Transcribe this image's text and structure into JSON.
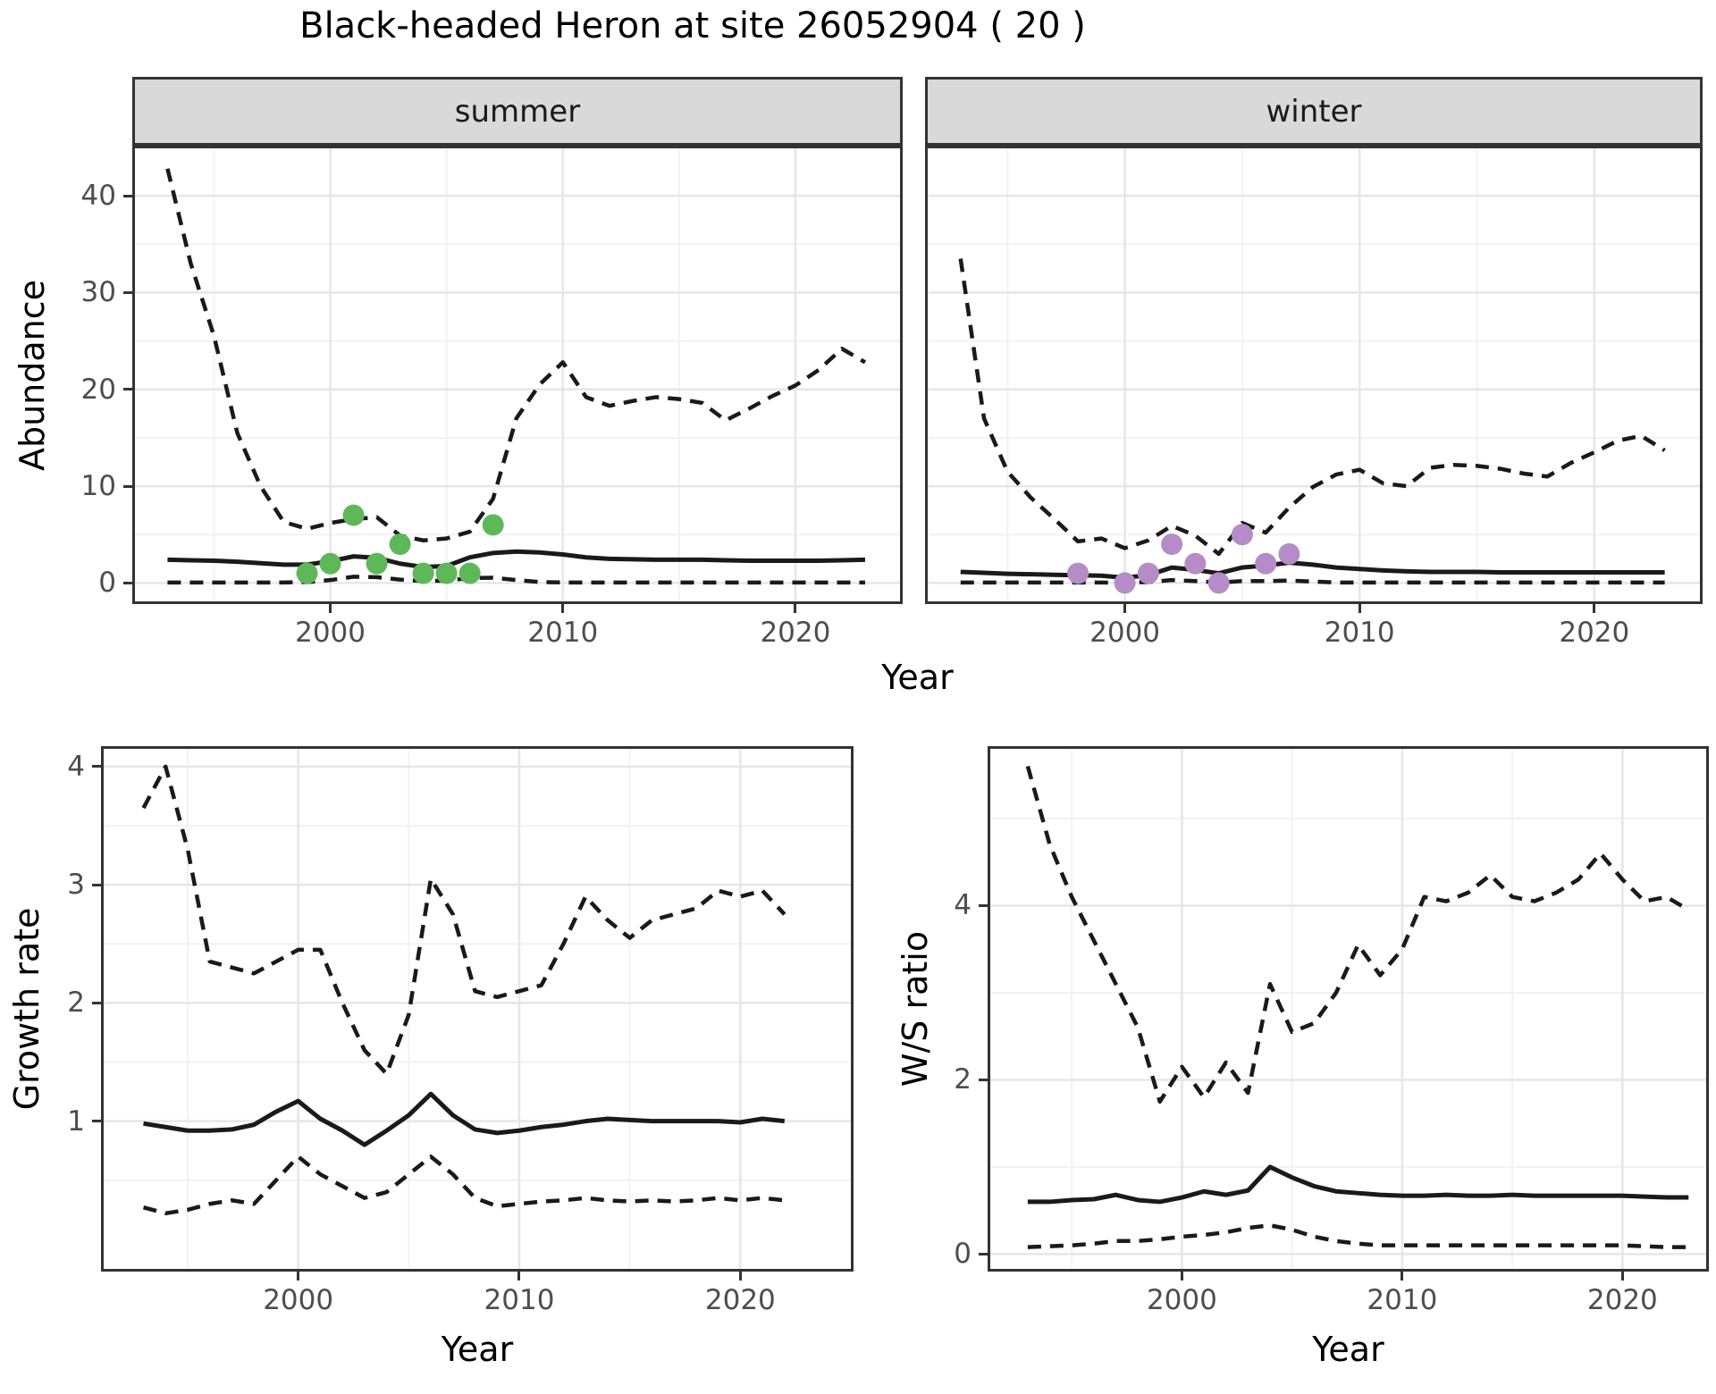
{
  "title": "Black-headed Heron at site 26052904 ( 20 )",
  "facets": {
    "summer": "summer",
    "winter": "winter"
  },
  "axis_titles": {
    "abundance": "Abundance",
    "growth_rate": "Growth rate",
    "ws_ratio": "W/S ratio",
    "year": "Year"
  },
  "colors": {
    "summer_points": "#5eb85a",
    "winter_points": "#b58cc7",
    "line": "#1a1a1a",
    "tick_label": "#4d4d4d",
    "strip_bg": "#d9d9d9",
    "grid_major": "#e6e6e6",
    "grid_minor": "#f2f2f2",
    "panel_border": "#333333"
  },
  "chart_data": [
    {
      "id": "abundance-summer",
      "type": "line",
      "facet_label": "summer",
      "xlabel": "Year",
      "ylabel": "Abundance",
      "xlim": [
        1991.6,
        2024.5
      ],
      "ylim": [
        -1.9,
        44.9
      ],
      "xticks": [
        2000,
        2010,
        2020
      ],
      "yticks": [
        0,
        10,
        20,
        30,
        40
      ],
      "xminor": [
        1995,
        2005,
        2015
      ],
      "yminor": [
        5,
        15,
        25,
        35
      ],
      "show_y_labels": true,
      "x_years": [
        1993,
        1994,
        1995,
        1996,
        1997,
        1998,
        1999,
        2000,
        2001,
        2002,
        2003,
        2004,
        2005,
        2006,
        2007,
        2008,
        2009,
        2010,
        2011,
        2012,
        2013,
        2014,
        2015,
        2016,
        2017,
        2018,
        2019,
        2020,
        2021,
        2022,
        2023
      ],
      "series": [
        {
          "name": "upper-95ci",
          "style": "dashed",
          "values": [
            42.8,
            33,
            25.5,
            15.5,
            10,
            6.3,
            5.6,
            6.2,
            6.6,
            6.8,
            4.9,
            4.4,
            4.6,
            5.3,
            8.7,
            17,
            20.5,
            22.8,
            19.2,
            18.3,
            18.8,
            19.2,
            19,
            18.6,
            16.8,
            18,
            19.3,
            20.4,
            22,
            24.2,
            22.8
          ]
        },
        {
          "name": "median",
          "style": "solid",
          "values": [
            2.4,
            2.35,
            2.3,
            2.2,
            2.05,
            1.9,
            1.9,
            2.25,
            2.75,
            2.6,
            2.0,
            1.65,
            1.75,
            2.65,
            3.1,
            3.25,
            3.15,
            2.95,
            2.65,
            2.5,
            2.45,
            2.4,
            2.4,
            2.4,
            2.35,
            2.3,
            2.3,
            2.3,
            2.3,
            2.35,
            2.4
          ]
        },
        {
          "name": "lower-95ci",
          "style": "dashed",
          "values": [
            0.05,
            0.05,
            0.05,
            0.05,
            0.05,
            0.05,
            0.1,
            0.3,
            0.65,
            0.6,
            0.35,
            0.2,
            0.25,
            0.5,
            0.55,
            0.3,
            0.1,
            0.05,
            0.05,
            0.05,
            0.05,
            0.05,
            0.05,
            0.05,
            0.05,
            0.05,
            0.05,
            0.05,
            0.05,
            0.05,
            0.05
          ]
        }
      ],
      "points": {
        "name": "observed-abundance-summer",
        "color_key": "summer_points",
        "data": [
          [
            1999,
            1
          ],
          [
            2000,
            2
          ],
          [
            2001,
            7
          ],
          [
            2002,
            2
          ],
          [
            2003,
            4
          ],
          [
            2004,
            1
          ],
          [
            2005,
            1
          ],
          [
            2006,
            1
          ],
          [
            2007,
            6
          ]
        ]
      }
    },
    {
      "id": "abundance-winter",
      "type": "line",
      "facet_label": "winter",
      "xlabel": "Year",
      "ylabel": "Abundance",
      "xlim": [
        1991.6,
        2024.5
      ],
      "ylim": [
        -1.9,
        44.9
      ],
      "xticks": [
        2000,
        2010,
        2020
      ],
      "yticks": [
        0,
        10,
        20,
        30,
        40
      ],
      "xminor": [
        1995,
        2005,
        2015
      ],
      "yminor": [
        5,
        15,
        25,
        35
      ],
      "show_y_labels": false,
      "x_years": [
        1993,
        1994,
        1995,
        1996,
        1997,
        1998,
        1999,
        2000,
        2001,
        2002,
        2003,
        2004,
        2005,
        2006,
        2007,
        2008,
        2009,
        2010,
        2011,
        2012,
        2013,
        2014,
        2015,
        2016,
        2017,
        2018,
        2019,
        2020,
        2021,
        2022,
        2023
      ],
      "series": [
        {
          "name": "upper-95ci",
          "style": "dashed",
          "values": [
            33.5,
            17,
            11.5,
            8.8,
            6.6,
            4.3,
            4.6,
            3.6,
            4.4,
            5.9,
            4.9,
            3.0,
            6.2,
            5.2,
            7.8,
            9.9,
            11.2,
            11.7,
            10.3,
            10.0,
            11.9,
            12.2,
            12.1,
            11.8,
            11.3,
            11.0,
            12.4,
            13.5,
            14.7,
            15.2,
            13.7
          ]
        },
        {
          "name": "median",
          "style": "solid",
          "values": [
            1.15,
            1.05,
            0.95,
            0.9,
            0.85,
            0.8,
            0.75,
            0.55,
            0.8,
            1.6,
            1.35,
            1.0,
            1.6,
            1.8,
            2.1,
            1.9,
            1.6,
            1.45,
            1.3,
            1.2,
            1.15,
            1.15,
            1.15,
            1.1,
            1.1,
            1.1,
            1.1,
            1.1,
            1.1,
            1.1,
            1.1
          ]
        },
        {
          "name": "lower-95ci",
          "style": "dashed",
          "values": [
            0.05,
            0.05,
            0.05,
            0.05,
            0.05,
            0.05,
            0.05,
            0.02,
            0.1,
            0.3,
            0.2,
            0.05,
            0.2,
            0.2,
            0.25,
            0.15,
            0.05,
            0.05,
            0.05,
            0.05,
            0.05,
            0.05,
            0.05,
            0.05,
            0.05,
            0.05,
            0.05,
            0.05,
            0.05,
            0.05,
            0.05
          ]
        }
      ],
      "points": {
        "name": "observed-abundance-winter",
        "color_key": "winter_points",
        "data": [
          [
            1998,
            1
          ],
          [
            2000,
            0
          ],
          [
            2001,
            1
          ],
          [
            2002,
            4
          ],
          [
            2003,
            2
          ],
          [
            2004,
            0
          ],
          [
            2005,
            5
          ],
          [
            2006,
            2
          ],
          [
            2007,
            3
          ]
        ]
      }
    },
    {
      "id": "growth-rate",
      "type": "line",
      "facet_label": null,
      "xlabel": "Year",
      "ylabel": "Growth rate",
      "xlim": [
        1991.2,
        2025.0
      ],
      "ylim": [
        -0.25,
        4.15
      ],
      "xticks": [
        2000,
        2010,
        2020
      ],
      "yticks": [
        1,
        2,
        3,
        4
      ],
      "xminor": [
        1995,
        2005,
        2015
      ],
      "yminor": [
        0.5,
        1.5,
        2.5,
        3.5
      ],
      "show_y_labels": true,
      "x_years": [
        1993,
        1994,
        1995,
        1996,
        1997,
        1998,
        1999,
        2000,
        2001,
        2002,
        2003,
        2004,
        2005,
        2006,
        2007,
        2008,
        2009,
        2010,
        2011,
        2012,
        2013,
        2014,
        2015,
        2016,
        2017,
        2018,
        2019,
        2020,
        2021,
        2022
      ],
      "series": [
        {
          "name": "upper-95ci",
          "style": "dashed",
          "values": [
            3.65,
            4.0,
            3.3,
            2.35,
            2.3,
            2.25,
            2.35,
            2.45,
            2.45,
            2.0,
            1.6,
            1.4,
            1.9,
            3.05,
            2.75,
            2.1,
            2.05,
            2.1,
            2.15,
            2.5,
            2.9,
            2.7,
            2.55,
            2.7,
            2.75,
            2.8,
            2.95,
            2.9,
            2.95,
            2.75
          ]
        },
        {
          "name": "median",
          "style": "solid",
          "values": [
            0.98,
            0.95,
            0.92,
            0.92,
            0.93,
            0.97,
            1.08,
            1.17,
            1.02,
            0.92,
            0.8,
            0.92,
            1.05,
            1.23,
            1.05,
            0.93,
            0.9,
            0.92,
            0.95,
            0.97,
            1.0,
            1.02,
            1.01,
            1.0,
            1.0,
            1.0,
            1.0,
            0.99,
            1.02,
            1.0
          ]
        },
        {
          "name": "lower-95ci",
          "style": "dashed",
          "values": [
            0.27,
            0.22,
            0.25,
            0.3,
            0.33,
            0.3,
            0.5,
            0.7,
            0.55,
            0.45,
            0.35,
            0.4,
            0.55,
            0.7,
            0.55,
            0.35,
            0.28,
            0.3,
            0.32,
            0.33,
            0.35,
            0.33,
            0.32,
            0.33,
            0.32,
            0.33,
            0.35,
            0.33,
            0.35,
            0.33
          ]
        }
      ],
      "points": null
    },
    {
      "id": "ws-ratio",
      "type": "line",
      "facet_label": null,
      "xlabel": "Year",
      "ylabel": "W/S ratio",
      "xlim": [
        1991.3,
        2023.8
      ],
      "ylim": [
        -0.17,
        5.8
      ],
      "xticks": [
        2000,
        2010,
        2020
      ],
      "yticks": [
        0,
        2,
        4
      ],
      "xminor": [
        1995,
        2005,
        2015
      ],
      "yminor": [
        1,
        3,
        5
      ],
      "show_y_labels": true,
      "x_years": [
        1993,
        1994,
        1995,
        1996,
        1997,
        1998,
        1999,
        2000,
        2001,
        2002,
        2003,
        2004,
        2005,
        2006,
        2007,
        2008,
        2009,
        2010,
        2011,
        2012,
        2013,
        2014,
        2015,
        2016,
        2017,
        2018,
        2019,
        2020,
        2021,
        2022,
        2023
      ],
      "series": [
        {
          "name": "upper-95ci",
          "style": "dashed",
          "values": [
            5.6,
            4.7,
            4.1,
            3.6,
            3.1,
            2.6,
            1.75,
            2.15,
            1.8,
            2.2,
            1.85,
            3.1,
            2.55,
            2.65,
            3.0,
            3.55,
            3.2,
            3.5,
            4.1,
            4.05,
            4.15,
            4.35,
            4.1,
            4.05,
            4.15,
            4.3,
            4.6,
            4.3,
            4.05,
            4.1,
            3.95
          ]
        },
        {
          "name": "median",
          "style": "solid",
          "values": [
            0.6,
            0.6,
            0.62,
            0.63,
            0.68,
            0.62,
            0.6,
            0.65,
            0.72,
            0.68,
            0.73,
            1.0,
            0.88,
            0.78,
            0.72,
            0.7,
            0.68,
            0.67,
            0.67,
            0.68,
            0.67,
            0.67,
            0.68,
            0.67,
            0.67,
            0.67,
            0.67,
            0.67,
            0.66,
            0.65,
            0.65
          ]
        },
        {
          "name": "lower-95ci",
          "style": "dashed",
          "values": [
            0.08,
            0.09,
            0.1,
            0.12,
            0.15,
            0.15,
            0.17,
            0.2,
            0.22,
            0.25,
            0.3,
            0.33,
            0.28,
            0.2,
            0.15,
            0.12,
            0.1,
            0.1,
            0.1,
            0.1,
            0.1,
            0.1,
            0.1,
            0.1,
            0.1,
            0.1,
            0.1,
            0.1,
            0.09,
            0.08,
            0.08
          ]
        }
      ],
      "points": null
    }
  ]
}
